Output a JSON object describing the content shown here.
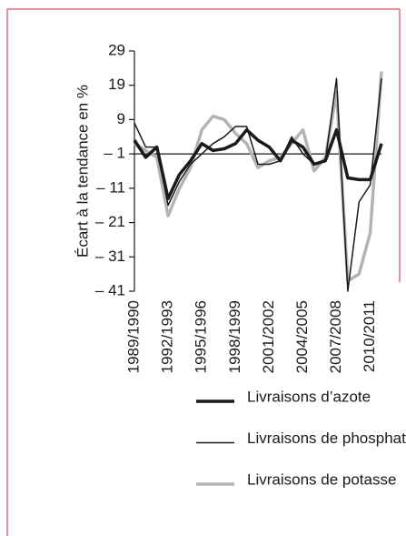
{
  "chart_data": {
    "type": "line",
    "y_label": "Écart à la tendance en %",
    "categories": [
      "1989/1990",
      null,
      null,
      "1992/1993",
      null,
      null,
      "1995/1996",
      null,
      null,
      "1998/1999",
      null,
      null,
      "2001/2002",
      null,
      null,
      "2004/2005",
      null,
      null,
      "2007/2008",
      null,
      null,
      "2010/2011",
      null
    ],
    "series": [
      {
        "name": "Livraisons d’azote",
        "color": "#1a1a1a",
        "line_width": 3.5,
        "values": [
          3,
          -2,
          1,
          -14,
          -7,
          -3,
          2,
          0,
          0.5,
          2,
          6,
          3,
          1,
          -3,
          3,
          1,
          -4,
          -3,
          6,
          -8,
          -8.5,
          -8.5,
          2
        ]
      },
      {
        "name": "Livraisons de phosphate",
        "color": "#1a1a1a",
        "line_width": 1.5,
        "values": [
          8,
          1,
          1,
          -16,
          -9,
          -4,
          -1,
          2,
          4,
          7,
          7,
          -4,
          -4,
          -3,
          4,
          -1,
          -4,
          -3,
          21,
          -41,
          -15,
          -10,
          21
        ]
      },
      {
        "name": "Livraisons de potasse",
        "color": "#b3b3b3",
        "line_width": 3.5,
        "values": [
          2,
          0,
          -2,
          -19,
          -11,
          -5,
          6,
          10,
          9,
          5,
          2,
          -5,
          -3,
          -2,
          2,
          6,
          -6,
          -2,
          17,
          -38,
          -36,
          -24,
          23
        ]
      }
    ],
    "ylim": [
      -41,
      29
    ],
    "yticks": [
      29,
      19,
      9,
      {
        "value": -1,
        "label": "– 1"
      },
      {
        "value": -11,
        "label": "– 11"
      },
      {
        "value": -21,
        "label": "– 21"
      },
      {
        "value": -31,
        "label": "– 31"
      },
      {
        "value": -41,
        "label": "– 41"
      }
    ],
    "zero_line": -1
  }
}
